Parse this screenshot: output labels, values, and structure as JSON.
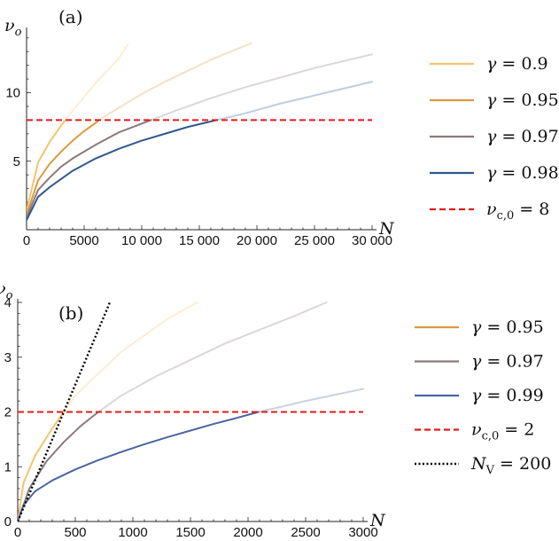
{
  "chart_data": [
    {
      "type": "line",
      "panel_label": "(a)",
      "xlabel": "N",
      "ylabel": "ν_o",
      "xlim": [
        0,
        30000
      ],
      "ylim": [
        0,
        14.5
      ],
      "xticks": [
        0,
        5000,
        10000,
        15000,
        20000,
        25000,
        30000
      ],
      "xtick_labels": [
        "0",
        "5000",
        "10 000",
        "15 000",
        "20 000",
        "25 000",
        "30 000"
      ],
      "yticks": [
        5,
        10
      ],
      "ytick_labels": [
        "5",
        "10"
      ],
      "grid": false,
      "legend_position": "right",
      "series": [
        {
          "name": "γ = 0.9",
          "color": "#f5c36e",
          "x": [
            0,
            1000,
            2000,
            3000,
            4000,
            5000,
            6000,
            7000,
            8000,
            8800
          ],
          "y": [
            1.4,
            4.9,
            6.4,
            7.6,
            8.7,
            9.7,
            10.7,
            11.6,
            12.5,
            13.5
          ],
          "segments": [
            {
              "from": 0,
              "to": 3300,
              "opacity": 1.0
            },
            {
              "from": 3300,
              "to": 8800,
              "opacity": 0.3
            }
          ]
        },
        {
          "name": "γ = 0.95",
          "color": "#d99a3e",
          "x": [
            0,
            1000,
            2000,
            3000,
            4000,
            5000,
            6000,
            6300,
            8000,
            10000,
            12000,
            14000,
            16000,
            18000,
            19500
          ],
          "y": [
            1.1,
            3.6,
            4.8,
            5.7,
            6.5,
            7.2,
            7.8,
            8.0,
            8.9,
            9.9,
            10.8,
            11.6,
            12.4,
            13.1,
            13.6
          ],
          "segments": [
            {
              "from": 0,
              "to": 6300,
              "opacity": 1.0
            },
            {
              "from": 6300,
              "to": 19500,
              "opacity": 0.3
            }
          ]
        },
        {
          "name": "γ = 0.97",
          "color": "#8b7a7a",
          "x": [
            0,
            1000,
            2000,
            3000,
            4000,
            6000,
            8000,
            10800,
            13000,
            16000,
            19000,
            22000,
            25000,
            28000,
            30000
          ],
          "y": [
            0.9,
            2.9,
            3.8,
            4.6,
            5.2,
            6.2,
            7.1,
            8.0,
            8.7,
            9.6,
            10.4,
            11.1,
            11.8,
            12.4,
            12.8
          ],
          "segments": [
            {
              "from": 0,
              "to": 10800,
              "opacity": 1.0
            },
            {
              "from": 10800,
              "to": 30000,
              "opacity": 0.3
            }
          ]
        },
        {
          "name": "γ = 0.98",
          "color": "#2f5a8e",
          "x": [
            0,
            1000,
            2000,
            4000,
            6000,
            8000,
            10000,
            12000,
            14000,
            16500,
            19000,
            22000,
            25000,
            28000,
            30000
          ],
          "y": [
            0.7,
            2.4,
            3.1,
            4.3,
            5.2,
            5.9,
            6.5,
            7.0,
            7.5,
            8.0,
            8.5,
            9.2,
            9.8,
            10.4,
            10.8
          ],
          "segments": [
            {
              "from": 0,
              "to": 16500,
              "opacity": 1.0
            },
            {
              "from": 16500,
              "to": 30000,
              "opacity": 0.3
            }
          ]
        },
        {
          "name": "ν_c,0 = 8",
          "color": "#e31a1c",
          "dash": "dashed",
          "x": [
            0,
            30000
          ],
          "y": [
            8,
            8
          ]
        }
      ],
      "legend": [
        {
          "main": "γ",
          "rest": " = 0.9",
          "color": "#f5c36e",
          "style": "solid"
        },
        {
          "main": "γ",
          "rest": " = 0.95",
          "color": "#d99a3e",
          "style": "solid"
        },
        {
          "main": "γ",
          "rest": " = 0.97",
          "color": "#8b7a7a",
          "style": "solid"
        },
        {
          "main": "γ",
          "rest": " = 0.98",
          "color": "#2f5a8e",
          "style": "solid"
        },
        {
          "main": "ν",
          "sub": "c,0",
          "rest": " = 8",
          "color": "#e31a1c",
          "style": "dashed"
        }
      ]
    },
    {
      "type": "line",
      "panel_label": "(b)",
      "xlabel": "N",
      "ylabel": "ν_o",
      "xlim": [
        0,
        3000
      ],
      "ylim": [
        0,
        4
      ],
      "xticks": [
        0,
        500,
        1000,
        1500,
        2000,
        2500,
        3000
      ],
      "xtick_labels": [
        "0",
        "500",
        "1000",
        "1500",
        "2000",
        "2500",
        "3000"
      ],
      "yticks": [
        0,
        1,
        2,
        3,
        4
      ],
      "ytick_labels": [
        "0",
        "1",
        "2",
        "3",
        "4"
      ],
      "grid": false,
      "legend_position": "right",
      "series": [
        {
          "name": "γ = 0.95",
          "color": "#f5c36e",
          "x": [
            0,
            50,
            150,
            300,
            400,
            500,
            700,
            900,
            1100,
            1300,
            1560
          ],
          "y": [
            0,
            0.7,
            1.2,
            1.7,
            2.0,
            2.3,
            2.7,
            3.1,
            3.4,
            3.7,
            4.0
          ],
          "segments": [
            {
              "from": 0,
              "to": 400,
              "opacity": 1.0
            },
            {
              "from": 400,
              "to": 1560,
              "opacity": 0.3
            }
          ]
        },
        {
          "name": "γ = 0.97",
          "color": "#8b7a7a",
          "x": [
            0,
            100,
            250,
            400,
            550,
            700,
            900,
            1200,
            1500,
            1800,
            2100,
            2400,
            2680
          ],
          "y": [
            0,
            0.6,
            1.1,
            1.45,
            1.75,
            2.0,
            2.3,
            2.65,
            2.95,
            3.25,
            3.5,
            3.75,
            4.0
          ],
          "segments": [
            {
              "from": 0,
              "to": 700,
              "opacity": 1.0
            },
            {
              "from": 700,
              "to": 2680,
              "opacity": 0.3
            }
          ]
        },
        {
          "name": "γ = 0.99",
          "color": "#4a66a3",
          "x": [
            0,
            50,
            150,
            300,
            500,
            700,
            900,
            1100,
            1300,
            1500,
            1700,
            1900,
            2090,
            2300,
            2500,
            2700,
            3000
          ],
          "y": [
            0,
            0.3,
            0.55,
            0.75,
            0.95,
            1.12,
            1.27,
            1.41,
            1.54,
            1.66,
            1.78,
            1.89,
            2.0,
            2.1,
            2.2,
            2.29,
            2.42
          ],
          "segments": [
            {
              "from": 0,
              "to": 2090,
              "opacity": 1.0
            },
            {
              "from": 2090,
              "to": 3000,
              "opacity": 0.3
            }
          ]
        },
        {
          "name": "ν_c,0 = 2",
          "color": "#e31a1c",
          "dash": "dashed",
          "x": [
            0,
            3000
          ],
          "y": [
            2,
            2
          ]
        },
        {
          "name": "N_V = 200",
          "color": "#000000",
          "dash": "dotted",
          "x": [
            0,
            100,
            200,
            400,
            600,
            800
          ],
          "y": [
            0,
            0.5,
            1.0,
            2.0,
            3.0,
            4.0
          ]
        }
      ],
      "legend": [
        {
          "main": "γ",
          "rest": " = 0.95",
          "color": "#d99a3e",
          "style": "solid"
        },
        {
          "main": "γ",
          "rest": " = 0.97",
          "color": "#8b7a7a",
          "style": "solid"
        },
        {
          "main": "γ",
          "rest": " = 0.99",
          "color": "#4a66a3",
          "style": "solid"
        },
        {
          "main": "ν",
          "sub": "c,0",
          "rest": " = 2",
          "color": "#e31a1c",
          "style": "dashed"
        },
        {
          "main": "N",
          "sub": "V",
          "rest": " = 200",
          "color": "#000000",
          "style": "dotted"
        }
      ]
    }
  ]
}
